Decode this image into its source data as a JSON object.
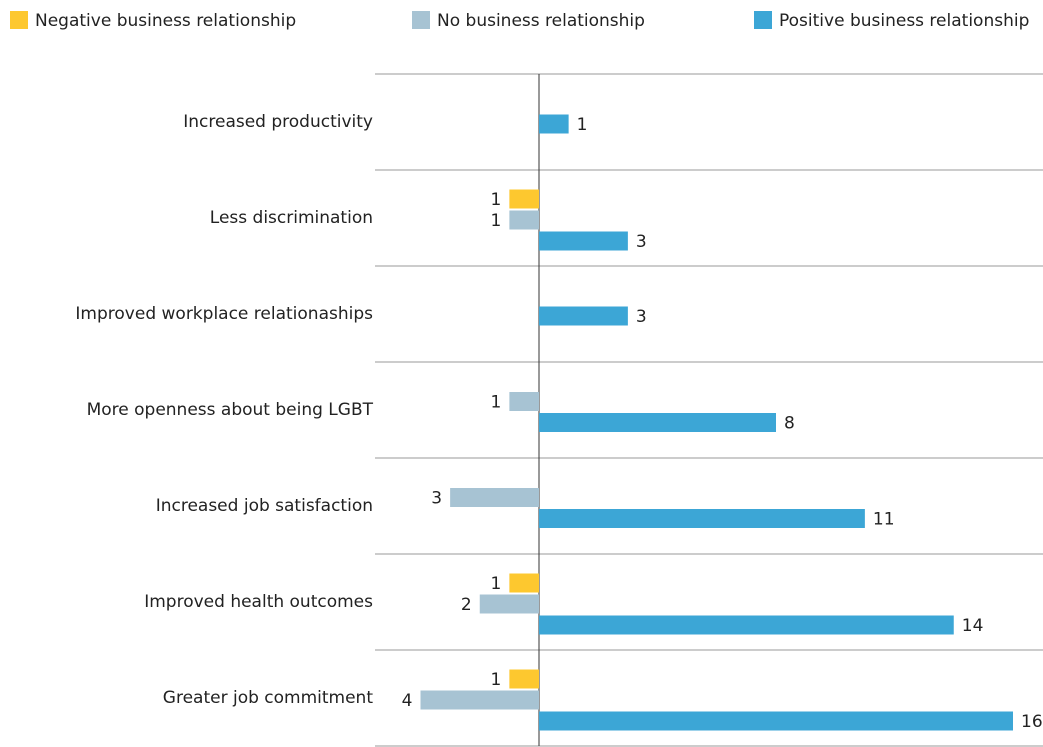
{
  "chart_data": {
    "type": "diverging-bar",
    "categories": [
      "Increased productivity",
      "Less discrimination",
      "Improved workplace relationaships",
      "More openness about being LGBT",
      "Increased job satisfaction",
      "Improved health outcomes",
      "Greater job commitment"
    ],
    "series": [
      {
        "name": "Negative business relationship",
        "color": "#fdc82f",
        "direction": "left",
        "values": [
          null,
          1,
          null,
          null,
          null,
          1,
          1
        ]
      },
      {
        "name": "No business relationship",
        "color": "#a7c3d3",
        "direction": "left",
        "values": [
          null,
          1,
          null,
          1,
          3,
          2,
          4
        ]
      },
      {
        "name": "Positive business relationship",
        "color": "#3ca6d6",
        "direction": "right",
        "values": [
          1,
          3,
          3,
          8,
          11,
          14,
          16
        ]
      }
    ],
    "legend": "top"
  }
}
